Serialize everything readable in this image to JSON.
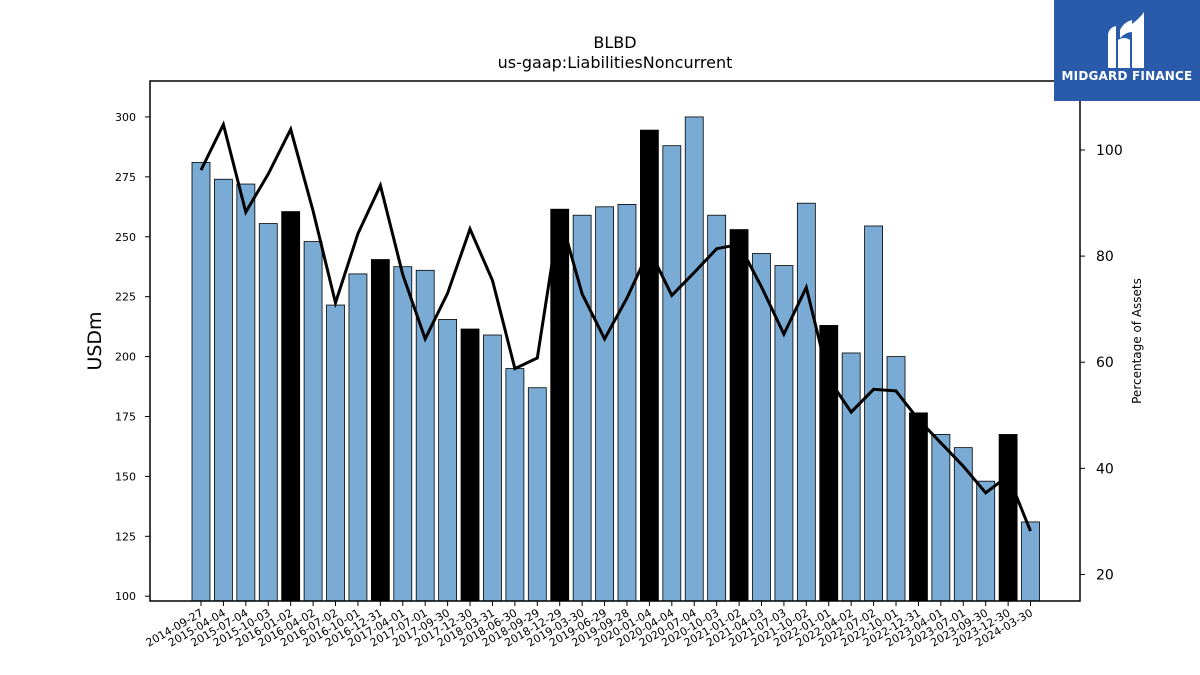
{
  "chart_data": {
    "type": "bar",
    "title": "BLBD",
    "subtitle": "us-gaap:LiabilitiesNoncurrent",
    "ylabel": "USDm",
    "y2label": "Percentage of Assets",
    "ylim": [
      98,
      315
    ],
    "y2lim": [
      15,
      113
    ],
    "yticks": [
      100,
      125,
      150,
      175,
      200,
      225,
      250,
      275,
      300
    ],
    "y2ticks": [
      20,
      40,
      60,
      80,
      100
    ],
    "categories": [
      "2014-09-27",
      "2015-04-04",
      "2015-07-04",
      "2015-10-03",
      "2016-01-02",
      "2016-04-02",
      "2016-07-02",
      "2016-10-01",
      "2016-12-31",
      "2017-04-01",
      "2017-07-01",
      "2017-09-30",
      "2017-12-30",
      "2018-03-31",
      "2018-06-30",
      "2018-09-29",
      "2018-12-29",
      "2019-03-30",
      "2019-06-29",
      "2019-09-28",
      "2020-01-04",
      "2020-04-04",
      "2020-07-04",
      "2020-10-03",
      "2021-01-02",
      "2021-04-03",
      "2021-07-03",
      "2021-10-02",
      "2022-01-01",
      "2022-04-02",
      "2022-07-02",
      "2022-10-01",
      "2022-12-31",
      "2023-04-01",
      "2023-07-01",
      "2023-09-30",
      "2023-12-30",
      "2024-03-30"
    ],
    "values": [
      281.0,
      274.0,
      272.0,
      255.5,
      260.5,
      248.0,
      221.5,
      234.5,
      240.5,
      237.5,
      236.0,
      215.5,
      211.5,
      209.0,
      195.0,
      187.0,
      261.5,
      259.0,
      262.5,
      263.5,
      294.5,
      288.0,
      300.0,
      259.0,
      253.0,
      243.0,
      238.0,
      264.0,
      213.0,
      201.5,
      254.5,
      200.0,
      176.5,
      167.5,
      162.0,
      148.0,
      167.5,
      131.0
    ],
    "highlight": [
      false,
      false,
      false,
      false,
      true,
      false,
      false,
      false,
      true,
      false,
      false,
      false,
      true,
      false,
      false,
      false,
      true,
      false,
      false,
      false,
      true,
      false,
      false,
      false,
      true,
      false,
      false,
      false,
      true,
      false,
      false,
      false,
      true,
      false,
      false,
      false,
      true,
      false
    ],
    "colors": {
      "bar": "#7aabd4",
      "highlight_bar": "#000000",
      "line": "#000000",
      "edge": "#000000"
    },
    "series": [
      {
        "name": "",
        "axis": "right",
        "type": "line",
        "values": [
          96.2,
          104.8,
          88.3,
          95.5,
          103.9,
          88.5,
          71.2,
          84.2,
          93.3,
          76.5,
          64.4,
          73.0,
          85.1,
          75.4,
          58.8,
          60.8,
          87.9,
          72.9,
          64.4,
          72.1,
          81.2,
          72.6,
          76.9,
          81.4,
          82.2,
          74.2,
          65.3,
          74.1,
          56.8,
          50.6,
          54.9,
          54.6,
          49.2,
          44.8,
          40.4,
          35.4,
          38.6,
          28.2
        ]
      }
    ]
  },
  "logo": {
    "text": "MIDGARD FINANCE",
    "icon": "midgard-logo-icon",
    "color": "#2a5bab"
  }
}
